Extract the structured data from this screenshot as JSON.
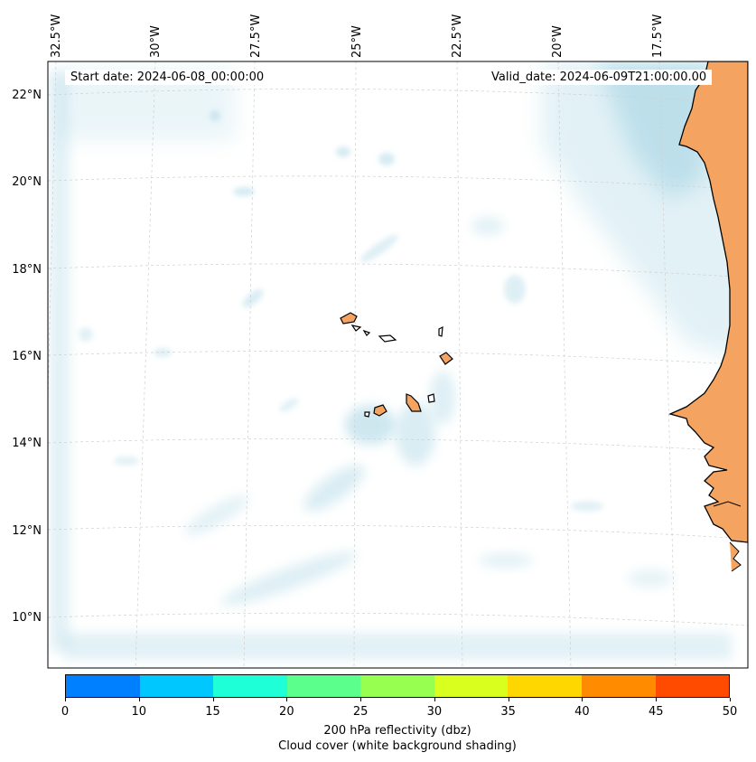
{
  "map": {
    "start_date": "Start date: 2024-06-08_00:00:00",
    "valid_date": "Valid_date: 2024-06-09T21:00:00.00",
    "lon_labels": [
      "32.5°W",
      "30°W",
      "27.5°W",
      "25°W",
      "22.5°W",
      "20°W",
      "17.5°W"
    ],
    "lat_labels": [
      "22°N",
      "20°N",
      "18°N",
      "16°N",
      "14°N",
      "12°N",
      "10°N"
    ],
    "land_color": "#f4a460",
    "cloud_color": "#add8e6"
  },
  "colorbar": {
    "ticks": [
      "0",
      "10",
      "15",
      "20",
      "25",
      "30",
      "35",
      "40",
      "45",
      "50"
    ],
    "colors": [
      "#0080ff",
      "#00c8ff",
      "#1effd8",
      "#5aff8c",
      "#96ff50",
      "#d8ff1e",
      "#ffd700",
      "#ff8c00",
      "#ff4b00"
    ],
    "label_line1": "200 hPa reflectivity (dbz)",
    "label_line2": "Cloud cover (white background shading)"
  }
}
